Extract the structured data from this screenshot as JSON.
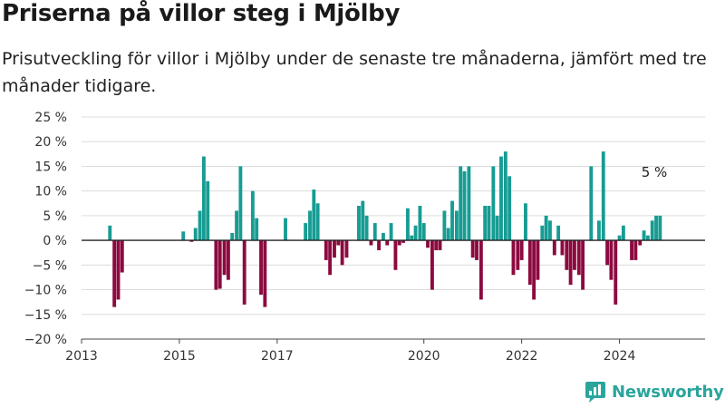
{
  "title": "Priserna på villor steg i Mjölby",
  "subtitle": "Prisutveckling för villor i Mjölby under de senaste tre månaderna, jämfört med tre månader tidigare.",
  "brand": "Newsworthy",
  "colors": {
    "positive": "#179c93",
    "negative": "#8c0a40",
    "grid": "#dcdcdc",
    "axis": "#444444"
  },
  "chart_data": {
    "type": "bar",
    "title": "Priserna på villor steg i Mjölby",
    "xlabel": "",
    "ylabel": "",
    "ylim": [
      -20,
      25
    ],
    "yticks": [
      25,
      20,
      15,
      10,
      5,
      0,
      -5,
      -10,
      -15,
      -20
    ],
    "ytick_labels": [
      "25 %",
      "20 %",
      "15 %",
      "10 %",
      "5 %",
      "0 %",
      "−5 %",
      "−10 %",
      "−15 %",
      "−20 %"
    ],
    "xlim": [
      2013.0,
      2025.75
    ],
    "xticks": [
      2013,
      2015,
      2017,
      2020,
      2022,
      2024
    ],
    "xtick_labels": [
      "2013",
      "2015",
      "2017",
      "2020",
      "2022",
      "2024"
    ],
    "grid": "horizontal",
    "annotation": {
      "text": "5 %",
      "x": 2024.75,
      "y": 5
    },
    "x": [
      2013.58,
      2013.67,
      2013.75,
      2013.83,
      2015.08,
      2015.25,
      2015.33,
      2015.42,
      2015.5,
      2015.58,
      2015.75,
      2015.83,
      2015.92,
      2016.0,
      2016.08,
      2016.17,
      2016.25,
      2016.33,
      2016.5,
      2016.58,
      2016.67,
      2016.75,
      2017.17,
      2017.58,
      2017.67,
      2017.75,
      2017.83,
      2018.0,
      2018.08,
      2018.17,
      2018.25,
      2018.33,
      2018.42,
      2018.67,
      2018.75,
      2018.83,
      2018.92,
      2019.0,
      2019.08,
      2019.17,
      2019.25,
      2019.33,
      2019.42,
      2019.5,
      2019.58,
      2019.67,
      2019.75,
      2019.83,
      2019.92,
      2020.0,
      2020.08,
      2020.17,
      2020.25,
      2020.33,
      2020.42,
      2020.5,
      2020.58,
      2020.67,
      2020.75,
      2020.83,
      2020.92,
      2021.0,
      2021.08,
      2021.17,
      2021.25,
      2021.33,
      2021.42,
      2021.5,
      2021.58,
      2021.67,
      2021.75,
      2021.83,
      2021.92,
      2022.0,
      2022.08,
      2022.17,
      2022.25,
      2022.33,
      2022.42,
      2022.5,
      2022.58,
      2022.67,
      2022.75,
      2022.83,
      2022.92,
      2023.0,
      2023.08,
      2023.17,
      2023.25,
      2023.42,
      2023.58,
      2023.67,
      2023.75,
      2023.83,
      2023.92,
      2024.0,
      2024.08,
      2024.25,
      2024.33,
      2024.42,
      2024.5,
      2024.58,
      2024.67,
      2024.75,
      2024.83
    ],
    "values": [
      3,
      -13.5,
      -12,
      -6.5,
      1.8,
      -0.3,
      2.5,
      6,
      17,
      12,
      -10,
      -9.8,
      -7,
      -8,
      1.5,
      6,
      15,
      -13,
      10,
      4.5,
      -11,
      -13.5,
      4.5,
      3.5,
      6,
      10.3,
      7.5,
      -4,
      -7,
      -3.5,
      -1,
      -5,
      -3.5,
      7,
      8,
      5,
      -1,
      3.5,
      -2,
      1.5,
      -1,
      3.5,
      -6,
      -1,
      -0.5,
      6.5,
      1,
      3,
      7,
      3.5,
      -1.5,
      -10,
      -2,
      -2,
      6,
      2.5,
      8,
      6,
      15,
      14,
      15,
      -3.5,
      -4,
      -12,
      7,
      7,
      15,
      5,
      17,
      18,
      13,
      -7,
      -6,
      -4,
      7.5,
      -9,
      -12,
      -8,
      3,
      5,
      4,
      -3,
      3,
      -3,
      -6,
      -9,
      -6,
      -7,
      -10,
      15,
      4,
      18,
      -5,
      -8,
      -13,
      1,
      3,
      -4,
      -4,
      -1,
      2,
      1,
      4,
      5,
      5
    ]
  }
}
